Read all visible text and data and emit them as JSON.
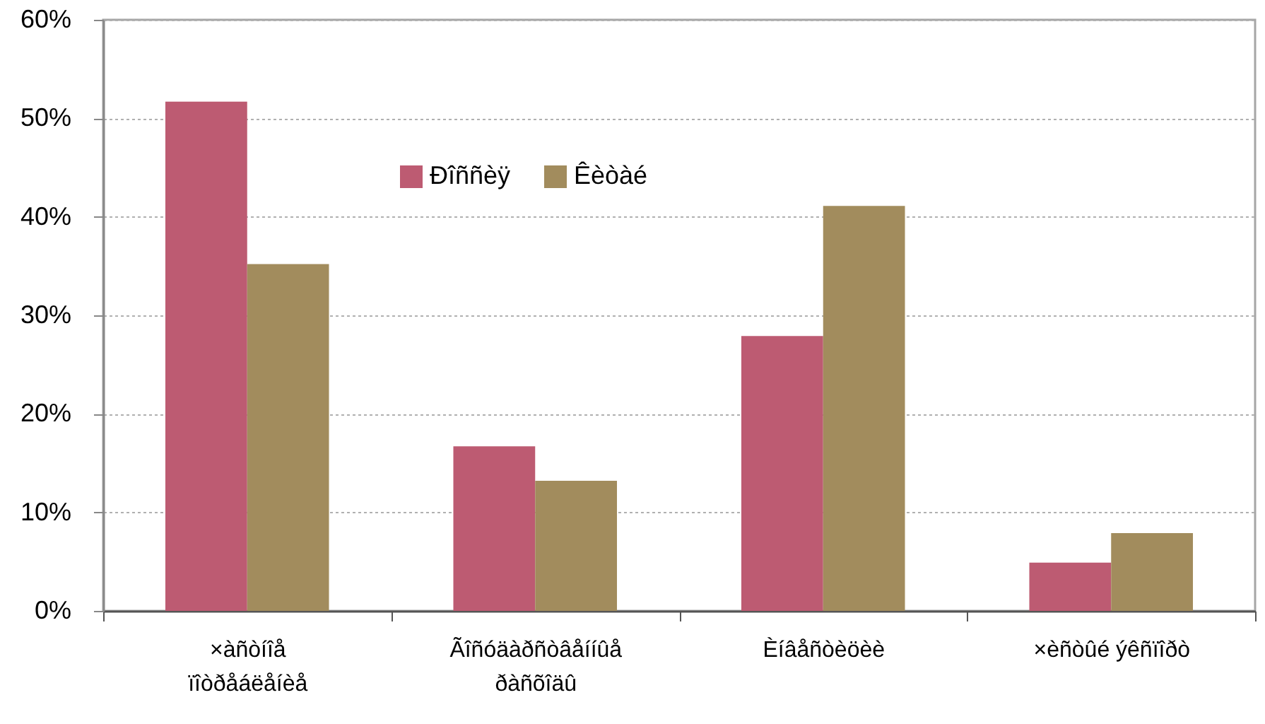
{
  "chart_data": {
    "type": "bar",
    "categories": [
      "×àñòíîå ïîòðåáëåíèå",
      "Ãîñóäàðñòâåííûå ðàñõîäû",
      "Èíâåñòèöèè",
      "×èñòûé ýêñïîðò"
    ],
    "series": [
      {
        "name": "Ðîññèÿ",
        "color": "#bd5b72",
        "values": [
          51.7,
          16.7,
          27.9,
          4.9
        ]
      },
      {
        "name": "Êèòàé",
        "color": "#a28c5d",
        "values": [
          35.2,
          13.2,
          41.1,
          7.9
        ]
      }
    ],
    "ylim": [
      0,
      60
    ],
    "yticks": [
      {
        "value": 0,
        "label": "0%"
      },
      {
        "value": 10,
        "label": "10%"
      },
      {
        "value": 20,
        "label": "20%"
      },
      {
        "value": 30,
        "label": "30%"
      },
      {
        "value": 40,
        "label": "40%"
      },
      {
        "value": 50,
        "label": "50%"
      },
      {
        "value": 60,
        "label": "60%"
      }
    ],
    "grid": "y",
    "legend": "top"
  }
}
